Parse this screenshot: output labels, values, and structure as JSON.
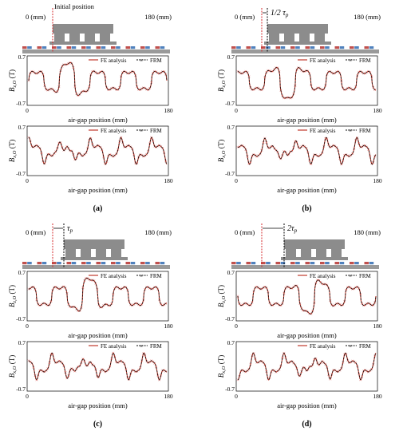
{
  "panels": [
    {
      "label": "(a)",
      "schematic": {
        "left_label": "0 (mm)",
        "right_label": "180 (mm)",
        "offset_label": "Initial position",
        "offset_fraction": 0
      },
      "charts": [
        {
          "ylabel": "B",
          "ylabel_sub": "z,O",
          "ylabel_unit": " (T)",
          "xlabel": "air-gap position (mm)",
          "xtick_labels": [
            "0",
            "180"
          ],
          "ytick_labels": [
            "0.7",
            "-0.7"
          ],
          "legend": [
            "FE analysis",
            "FRM"
          ],
          "kind": "z",
          "phase": 0
        },
        {
          "ylabel": "B",
          "ylabel_sub": "x,O",
          "ylabel_unit": " (T)",
          "xlabel": "air-gap position (mm)",
          "xtick_labels": [
            "0",
            "180"
          ],
          "ytick_labels": [
            "0.7",
            "-0.7"
          ],
          "legend": [
            "FE analysis",
            "FRM"
          ],
          "kind": "x",
          "phase": 0
        }
      ]
    },
    {
      "label": "(b)",
      "schematic": {
        "left_label": "0 (mm)",
        "right_label": "180 (mm)",
        "offset_label": "1/2 τ",
        "offset_sub": "p",
        "offset_fraction": 0.5
      },
      "charts": [
        {
          "ylabel": "B",
          "ylabel_sub": "z,O",
          "ylabel_unit": " (T)",
          "xlabel": "air-gap position (mm)",
          "xtick_labels": [
            "0",
            "180"
          ],
          "ytick_labels": [
            "0.7",
            "-0.7"
          ],
          "legend": [
            "FE analysis",
            "FRM"
          ],
          "kind": "z",
          "phase": 0.5
        },
        {
          "ylabel": "B",
          "ylabel_sub": "x,O",
          "ylabel_unit": " (T)",
          "xlabel": "air-gap position (mm)",
          "xtick_labels": [
            "0",
            "180"
          ],
          "ytick_labels": [
            "0.7",
            "-0.7"
          ],
          "legend": [
            "FE analysis",
            "FRM"
          ],
          "kind": "x",
          "phase": 0.5
        }
      ]
    },
    {
      "label": "(c)",
      "schematic": {
        "left_label": "0 (mm)",
        "right_label": "180 (mm)",
        "offset_label": "τ",
        "offset_sub": "p",
        "offset_fraction": 1
      },
      "charts": [
        {
          "ylabel": "B",
          "ylabel_sub": "z,O",
          "ylabel_unit": " (T)",
          "xlabel": "air-gap position (mm)",
          "xtick_labels": [
            "0",
            "180"
          ],
          "ytick_labels": [
            "0.7",
            "-0.7"
          ],
          "legend": [
            "FE analysis",
            "FRM"
          ],
          "kind": "z",
          "phase": 1
        },
        {
          "ylabel": "B",
          "ylabel_sub": "x,O",
          "ylabel_unit": " (T)",
          "xlabel": "air-gap position (mm)",
          "xtick_labels": [
            "0",
            "180"
          ],
          "ytick_labels": [
            "0.7",
            "-0.7"
          ],
          "legend": [
            "FE analysis",
            "FRM"
          ],
          "kind": "x",
          "phase": 1
        }
      ]
    },
    {
      "label": "(d)",
      "schematic": {
        "left_label": "0 (mm)",
        "right_label": "180 (mm)",
        "offset_label": "2τ",
        "offset_sub": "p",
        "offset_fraction": 2
      },
      "charts": [
        {
          "ylabel": "B",
          "ylabel_sub": "z,O",
          "ylabel_unit": " (T)",
          "xlabel": "air-gap position (mm)",
          "xtick_labels": [
            "0",
            "180"
          ],
          "ytick_labels": [
            "0.7",
            "-0.7"
          ],
          "legend": [
            "FE analysis",
            "FRM"
          ],
          "kind": "z",
          "phase": 2
        },
        {
          "ylabel": "B",
          "ylabel_sub": "x,O",
          "ylabel_unit": " (T)",
          "xlabel": "air-gap position (mm)",
          "xtick_labels": [
            "0",
            "180"
          ],
          "ytick_labels": [
            "0.7",
            "-0.7"
          ],
          "legend": [
            "FE analysis",
            "FRM"
          ],
          "kind": "x",
          "phase": 2
        }
      ]
    }
  ],
  "colors": {
    "fe_line": "#c0392b",
    "frm_line": "#111111",
    "frm_marker": "#e8a0a0",
    "magnet_red": "#c0504d",
    "magnet_blue": "#4f81bd",
    "mover": "#8c8c8c",
    "position_marker": "#d62728"
  },
  "chart_data": [
    {
      "type": "line",
      "panel": "(a)",
      "ylabel": "B z,O (T)",
      "xlabel": "air-gap position (mm)",
      "xlim": [
        0,
        180
      ],
      "ylim": [
        -0.7,
        0.7
      ],
      "series": [
        {
          "name": "FE analysis"
        },
        {
          "name": "FRM"
        }
      ],
      "x": [
        0,
        10,
        20,
        30,
        40,
        50,
        60,
        70,
        80,
        90,
        100,
        110,
        120,
        130,
        140,
        150,
        160,
        170,
        180
      ],
      "values": [
        0.05,
        0.12,
        0.18,
        -0.15,
        -0.2,
        0.45,
        0.1,
        -0.45,
        -0.6,
        0.35,
        0.2,
        -0.25,
        0.2,
        -0.3,
        0.25,
        -0.2,
        0.15,
        -0.1,
        0.05
      ]
    },
    {
      "type": "line",
      "panel": "(a)",
      "ylabel": "B x,O (T)",
      "xlabel": "air-gap position (mm)",
      "xlim": [
        0,
        180
      ],
      "ylim": [
        -0.7,
        0.7
      ],
      "series": [
        {
          "name": "FE analysis"
        },
        {
          "name": "FRM"
        }
      ],
      "x": [
        0,
        10,
        20,
        30,
        40,
        50,
        60,
        70,
        80,
        90,
        100,
        110,
        120,
        130,
        140,
        150,
        160,
        170,
        180
      ],
      "values": [
        -0.1,
        0.5,
        -0.3,
        0.5,
        -0.55,
        0.1,
        0.3,
        -0.2,
        0.35,
        -0.3,
        0.4,
        -0.35,
        0.55,
        -0.4,
        0.6,
        -0.4,
        0.6,
        -0.35,
        0.1
      ]
    },
    {
      "type": "line",
      "panel": "(b)",
      "ylabel": "B z,O (T)",
      "xlabel": "air-gap position (mm)",
      "xlim": [
        0,
        180
      ],
      "ylim": [
        -0.7,
        0.7
      ],
      "series": [
        {
          "name": "FE analysis"
        },
        {
          "name": "FRM"
        }
      ],
      "x": [
        0,
        10,
        20,
        30,
        40,
        50,
        60,
        70,
        80,
        90,
        100,
        110,
        120,
        130,
        140,
        150,
        160,
        170,
        180
      ],
      "values": [
        0.1,
        0.2,
        -0.2,
        0.25,
        -0.5,
        0.35,
        0.55,
        -0.3,
        0.5,
        -0.55,
        0.3,
        -0.2,
        0.25,
        -0.25,
        0.2,
        -0.2,
        0.15,
        -0.1,
        0.05
      ]
    },
    {
      "type": "line",
      "panel": "(b)",
      "ylabel": "B x,O (T)",
      "xlabel": "air-gap position (mm)",
      "xlim": [
        0,
        180
      ],
      "ylim": [
        -0.7,
        0.7
      ],
      "series": [
        {
          "name": "FE analysis"
        },
        {
          "name": "FRM"
        }
      ],
      "x": [
        0,
        10,
        20,
        30,
        40,
        50,
        60,
        70,
        80,
        90,
        100,
        110,
        120,
        130,
        140,
        150,
        160,
        170,
        180
      ],
      "values": [
        -0.1,
        0.55,
        -0.35,
        0.5,
        -0.45,
        0.3,
        -0.2,
        0.25,
        -0.3,
        0.4,
        -0.35,
        0.5,
        -0.4,
        0.55,
        -0.4,
        0.55,
        -0.35,
        0.5,
        0.1
      ]
    },
    {
      "type": "line",
      "panel": "(c)",
      "ylabel": "B z,O (T)",
      "xlabel": "air-gap position (mm)",
      "xlim": [
        0,
        180
      ],
      "ylim": [
        -0.7,
        0.7
      ],
      "series": [
        {
          "name": "FE analysis"
        },
        {
          "name": "FRM"
        }
      ],
      "x": [
        0,
        10,
        20,
        30,
        40,
        50,
        60,
        70,
        80,
        90,
        100,
        110,
        120,
        130,
        140,
        150,
        160,
        170,
        180
      ],
      "values": [
        0.1,
        0.2,
        -0.2,
        0.2,
        -0.25,
        0.3,
        -0.45,
        0.6,
        0.45,
        -0.55,
        0.5,
        -0.5,
        0.3,
        -0.25,
        0.2,
        -0.2,
        0.15,
        -0.1,
        0.05
      ]
    },
    {
      "type": "line",
      "panel": "(c)",
      "ylabel": "B x,O (T)",
      "xlabel": "air-gap position (mm)",
      "xlim": [
        0,
        180
      ],
      "ylim": [
        -0.7,
        0.7
      ],
      "series": [
        {
          "name": "FE analysis"
        },
        {
          "name": "FRM"
        }
      ],
      "x": [
        0,
        10,
        20,
        30,
        40,
        50,
        60,
        70,
        80,
        90,
        100,
        110,
        120,
        130,
        140,
        150,
        160,
        170,
        180
      ],
      "values": [
        -0.1,
        0.6,
        -0.4,
        0.6,
        -0.4,
        0.5,
        -0.35,
        0.3,
        -0.2,
        0.25,
        -0.3,
        0.45,
        -0.35,
        0.55,
        -0.4,
        0.6,
        -0.35,
        0.55,
        0.1
      ]
    },
    {
      "type": "line",
      "panel": "(d)",
      "ylabel": "B z,O (T)",
      "xlabel": "air-gap position (mm)",
      "xlim": [
        0,
        180
      ],
      "ylim": [
        -0.7,
        0.7
      ],
      "series": [
        {
          "name": "FE analysis"
        },
        {
          "name": "FRM"
        }
      ],
      "x": [
        0,
        10,
        20,
        30,
        40,
        50,
        60,
        70,
        80,
        90,
        100,
        110,
        120,
        130,
        140,
        150,
        160,
        170,
        180
      ],
      "values": [
        0.1,
        0.2,
        -0.2,
        0.2,
        -0.2,
        0.25,
        -0.3,
        0.3,
        0.5,
        -0.35,
        0.55,
        0.45,
        -0.55,
        0.5,
        -0.3,
        0.2,
        0.15,
        -0.1,
        0.05
      ]
    },
    {
      "type": "line",
      "panel": "(d)",
      "ylabel": "B x,O (T)",
      "xlabel": "air-gap position (mm)",
      "xlim": [
        0,
        180
      ],
      "ylim": [
        -0.7,
        0.7
      ],
      "series": [
        {
          "name": "FE analysis"
        },
        {
          "name": "FRM"
        }
      ],
      "x": [
        0,
        10,
        20,
        30,
        40,
        50,
        60,
        70,
        80,
        90,
        100,
        110,
        120,
        130,
        140,
        150,
        160,
        170,
        180
      ],
      "values": [
        -0.1,
        0.6,
        -0.4,
        0.6,
        -0.4,
        0.55,
        -0.35,
        0.5,
        -0.3,
        0.3,
        -0.2,
        0.3,
        -0.35,
        0.45,
        -0.35,
        0.55,
        -0.4,
        0.6,
        0.1
      ]
    }
  ]
}
